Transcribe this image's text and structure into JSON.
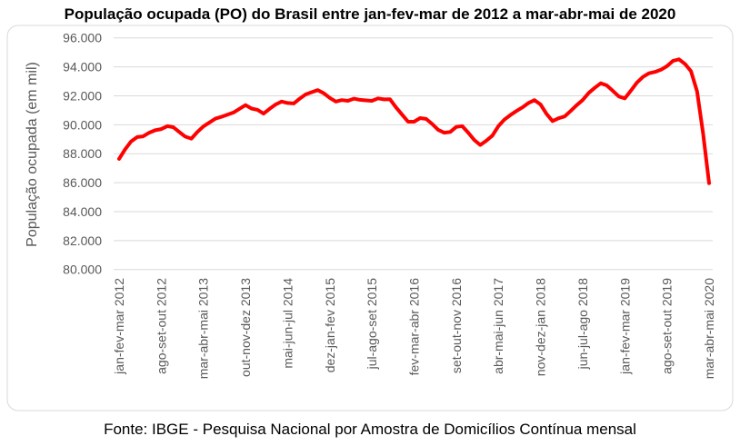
{
  "chart_data": {
    "type": "line",
    "title": "População ocupada (PO) do Brasil entre jan-fev-mar de 2012 a mar-abr-mai de 2020",
    "xlabel": "",
    "ylabel": "População ocupada (em mil)",
    "ylim": [
      80000,
      96000
    ],
    "y_ticks": [
      "80.000",
      "82.000",
      "84.000",
      "86.000",
      "88.000",
      "90.000",
      "92.000",
      "94.000",
      "96.000"
    ],
    "grid": true,
    "legend": "none",
    "line_color": "#ff0000",
    "x_tick_step": 7,
    "x_tick_labels": [
      "jan-fev-mar 2012",
      "ago-set-out 2012",
      "mar-abr-mai 2013",
      "out-nov-dez 2013",
      "mai-jun-jul 2014",
      "dez-jan-fev 2015",
      "jul-ago-set 2015",
      "fev-mar-abr 2016",
      "set-out-nov 2016",
      "abr-mai-jun 2017",
      "nov-dez-jan 2018",
      "jun-jul-ago 2018",
      "jan-fev-mar 2019",
      "ago-set-out 2019",
      "mar-abr-mai 2020"
    ],
    "series": [
      {
        "name": "População ocupada",
        "values": [
          87640,
          88300,
          88850,
          89150,
          89200,
          89450,
          89620,
          89700,
          89900,
          89830,
          89500,
          89180,
          89040,
          89500,
          89880,
          90150,
          90420,
          90550,
          90700,
          90840,
          91100,
          91360,
          91120,
          91030,
          90770,
          91100,
          91400,
          91600,
          91500,
          91470,
          91800,
          92100,
          92250,
          92390,
          92170,
          91850,
          91600,
          91700,
          91650,
          91800,
          91720,
          91680,
          91650,
          91820,
          91750,
          91760,
          91200,
          90700,
          90210,
          90210,
          90460,
          90400,
          90050,
          89650,
          89450,
          89500,
          89850,
          89900,
          89450,
          88950,
          88600,
          88900,
          89250,
          89900,
          90350,
          90670,
          90950,
          91200,
          91500,
          91700,
          91400,
          90750,
          90250,
          90450,
          90570,
          90950,
          91350,
          91700,
          92200,
          92550,
          92860,
          92720,
          92350,
          91950,
          91820,
          92350,
          92900,
          93300,
          93550,
          93650,
          93800,
          94040,
          94410,
          94520,
          94200,
          93700,
          92300,
          89400,
          85960
        ]
      }
    ]
  },
  "footer": "Fonte: IBGE - Pesquisa Nacional por Amostra de Domicílios Contínua mensal"
}
